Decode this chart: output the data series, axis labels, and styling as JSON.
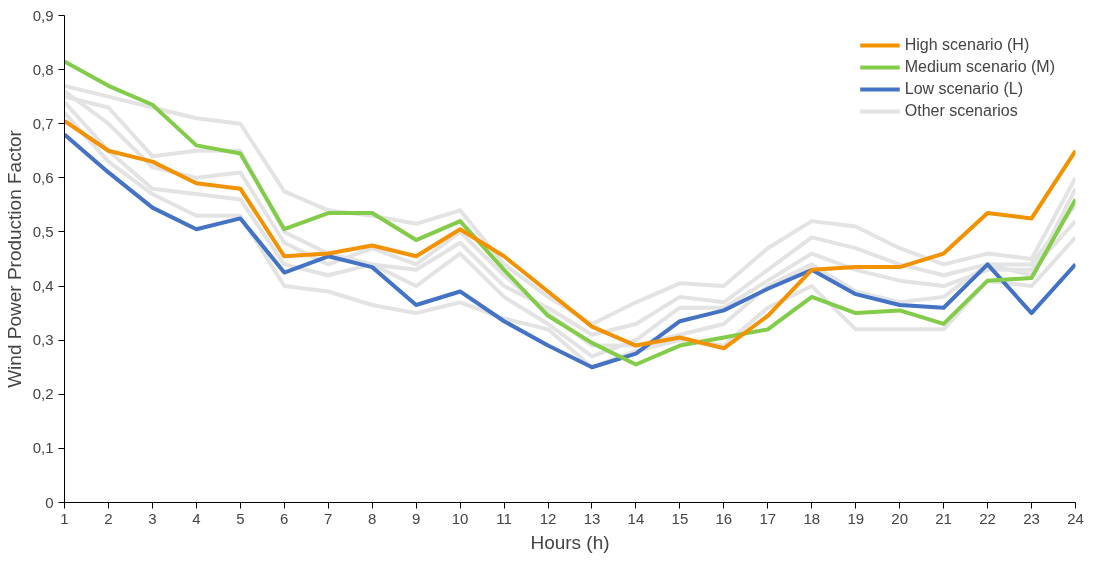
{
  "chart_data": {
    "type": "line",
    "xlabel": "Hours (h)",
    "ylabel": "Wind Power Production Factor",
    "x": [
      1,
      2,
      3,
      4,
      5,
      6,
      7,
      8,
      9,
      10,
      11,
      12,
      13,
      14,
      15,
      16,
      17,
      18,
      19,
      20,
      21,
      22,
      23,
      24
    ],
    "xlim": [
      1,
      24
    ],
    "xticks": [
      1,
      2,
      3,
      4,
      5,
      6,
      7,
      8,
      9,
      10,
      11,
      12,
      13,
      14,
      15,
      16,
      17,
      18,
      19,
      20,
      21,
      22,
      23,
      24
    ],
    "ylim": [
      0,
      0.9
    ],
    "yticks": [
      0,
      {
        "value": 0.1,
        "label": "0,1"
      },
      {
        "value": 0.2,
        "label": "0,2"
      },
      {
        "value": 0.3,
        "label": "0,3"
      },
      {
        "value": 0.4,
        "label": "0,4"
      },
      {
        "value": 0.5,
        "label": "0,5"
      },
      {
        "value": 0.6,
        "label": "0,6"
      },
      {
        "value": 0.7,
        "label": "0,7"
      },
      {
        "value": 0.8,
        "label": "0,8"
      },
      {
        "value": 0.9,
        "label": "0,9"
      }
    ],
    "grid": false,
    "legend": "top right",
    "marker": "none",
    "line_style": "solid",
    "series": [
      {
        "name": "High scenario (H)",
        "color": "#f39200",
        "values": [
          0.705,
          0.65,
          0.63,
          0.59,
          0.58,
          0.455,
          0.46,
          0.475,
          0.455,
          0.505,
          0.455,
          0.39,
          0.325,
          0.29,
          0.305,
          0.285,
          0.345,
          0.43,
          0.435,
          0.435,
          0.46,
          0.535,
          0.525,
          0.65
        ]
      },
      {
        "name": "Medium scenario (M)",
        "color": "#82cc4a",
        "values": [
          0.815,
          0.77,
          0.735,
          0.66,
          0.645,
          0.505,
          0.535,
          0.535,
          0.485,
          0.52,
          0.43,
          0.345,
          0.295,
          0.255,
          0.29,
          0.305,
          0.32,
          0.38,
          0.35,
          0.355,
          0.33,
          0.41,
          0.415,
          0.56
        ]
      },
      {
        "name": "Low scenario (L)",
        "color": "#4472c4",
        "values": [
          0.68,
          0.61,
          0.545,
          0.505,
          0.525,
          0.425,
          0.455,
          0.435,
          0.365,
          0.39,
          0.335,
          0.29,
          0.25,
          0.275,
          0.335,
          0.355,
          0.395,
          0.43,
          0.385,
          0.365,
          0.36,
          0.44,
          0.35,
          0.44
        ]
      },
      {
        "name": "Other scenarios",
        "color": "#e3e3e3",
        "values": [
          0.77,
          0.75,
          0.73,
          0.71,
          0.7,
          0.575,
          0.54,
          0.53,
          0.515,
          0.54,
          0.44,
          0.38,
          0.33,
          0.37,
          0.405,
          0.4,
          0.47,
          0.52,
          0.51,
          0.47,
          0.44,
          0.46,
          0.45,
          0.6
        ]
      },
      {
        "color": "#e3e3e3",
        "values": [
          0.75,
          0.73,
          0.64,
          0.65,
          0.65,
          0.5,
          0.46,
          0.44,
          0.43,
          0.48,
          0.4,
          0.36,
          0.31,
          0.33,
          0.38,
          0.37,
          0.43,
          0.49,
          0.47,
          0.44,
          0.42,
          0.44,
          0.44,
          0.55
        ]
      },
      {
        "color": "#e3e3e3",
        "values": [
          0.74,
          0.65,
          0.58,
          0.57,
          0.56,
          0.44,
          0.42,
          0.44,
          0.4,
          0.46,
          0.38,
          0.33,
          0.27,
          0.3,
          0.36,
          0.36,
          0.41,
          0.46,
          0.43,
          0.41,
          0.4,
          0.43,
          0.43,
          0.52
        ]
      },
      {
        "color": "#e3e3e3",
        "values": [
          0.72,
          0.63,
          0.57,
          0.53,
          0.53,
          0.4,
          0.39,
          0.365,
          0.35,
          0.37,
          0.34,
          0.32,
          0.25,
          0.28,
          0.3,
          0.29,
          0.36,
          0.4,
          0.32,
          0.32,
          0.32,
          0.41,
          0.4,
          0.49
        ]
      },
      {
        "color": "#e3e3e3",
        "values": [
          0.76,
          0.7,
          0.62,
          0.6,
          0.61,
          0.48,
          0.44,
          0.47,
          0.44,
          0.5,
          0.42,
          0.35,
          0.29,
          0.29,
          0.31,
          0.33,
          0.4,
          0.44,
          0.39,
          0.37,
          0.38,
          0.44,
          0.42,
          0.58
        ]
      }
    ]
  }
}
